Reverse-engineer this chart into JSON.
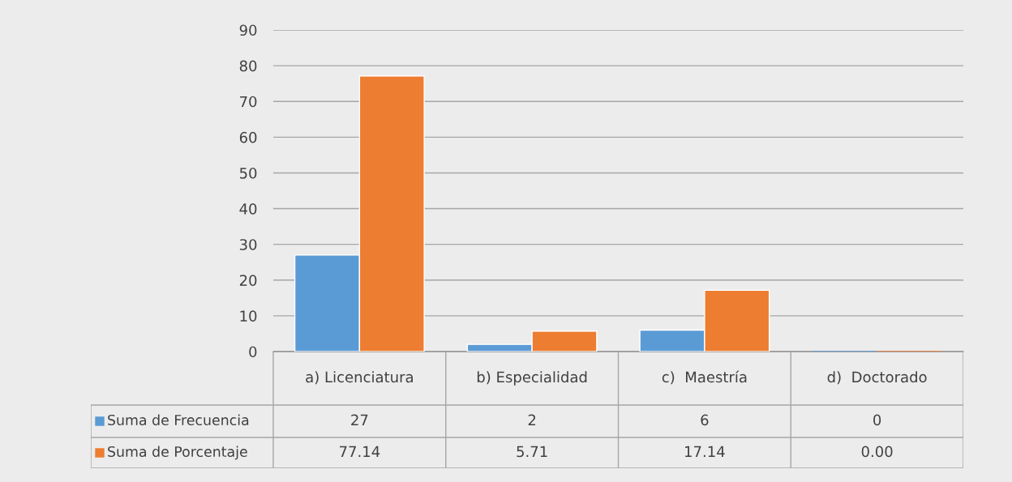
{
  "chart_data": {
    "type": "bar",
    "categories": [
      "a) Licenciatura",
      "b) Especialidad",
      "c)  Maestría",
      "d)  Doctorado"
    ],
    "series": [
      {
        "name": "Suma de Frecuencia",
        "color": "#5b9bd5",
        "values": [
          27,
          2,
          6,
          0
        ],
        "value_labels": [
          "27",
          "2",
          "6",
          "0"
        ]
      },
      {
        "name": "Suma de Porcentaje",
        "color": "#ed7d31",
        "values": [
          77.14,
          5.71,
          17.14,
          0.0
        ],
        "value_labels": [
          "77.14",
          "5.71",
          "17.14",
          "0.00"
        ]
      }
    ],
    "ylim": [
      0,
      90
    ],
    "yticks": [
      0,
      10,
      20,
      30,
      40,
      50,
      60,
      70,
      80,
      90
    ],
    "grid": "y",
    "legend": "bottom"
  }
}
